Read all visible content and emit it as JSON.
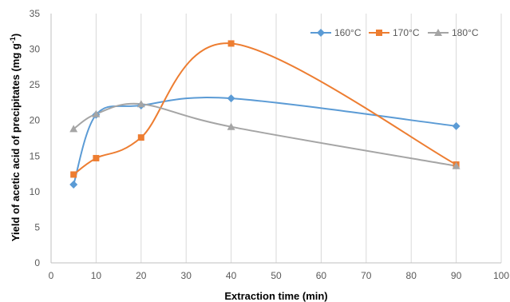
{
  "chart_data": {
    "type": "line",
    "title": "",
    "xlabel": "Extraction time (min)",
    "ylabel_main": "Yield of acetic acid of precipitates (mg g",
    "ylabel_sup": "-1",
    "ylabel_end": ")",
    "xlim": [
      0,
      100
    ],
    "ylim": [
      0,
      35
    ],
    "x_ticks": [
      0,
      10,
      20,
      30,
      40,
      50,
      60,
      70,
      80,
      90,
      100
    ],
    "y_ticks": [
      0,
      5,
      10,
      15,
      20,
      25,
      30,
      35
    ],
    "grid": "vertical",
    "legend_position": "top-right",
    "series": [
      {
        "name": "160°C",
        "color": "#5B9BD5",
        "marker": "diamond",
        "x": [
          5,
          10,
          20,
          40,
          90
        ],
        "y": [
          11.0,
          20.8,
          22.1,
          23.1,
          19.2
        ]
      },
      {
        "name": "170°C",
        "color": "#ED7D31",
        "marker": "square",
        "x": [
          5,
          10,
          20,
          40,
          90
        ],
        "y": [
          12.4,
          14.7,
          17.6,
          30.8,
          13.8
        ]
      },
      {
        "name": "180°C",
        "color": "#A5A5A5",
        "marker": "triangle",
        "x": [
          5,
          10,
          20,
          40,
          90
        ],
        "y": [
          18.8,
          20.9,
          22.3,
          19.1,
          13.6
        ]
      }
    ]
  }
}
